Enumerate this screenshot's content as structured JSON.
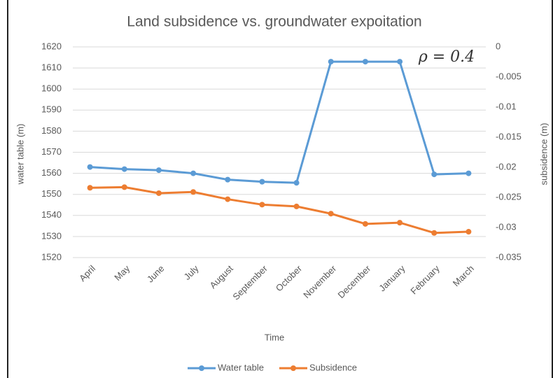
{
  "chart_data": {
    "type": "line",
    "title": "Land subsidence vs. groundwater expoitation",
    "annotation": "ρ = 0.4",
    "x_label": "Time",
    "y_label": "water table (m)",
    "y2_label": "subsidence (m)",
    "categories": [
      "April",
      "May",
      "June",
      "July",
      "August",
      "September",
      "October",
      "November",
      "December",
      "January",
      "February",
      "March"
    ],
    "series": [
      {
        "name": "Water table",
        "color": "#5b9bd5",
        "values": [
          1563,
          1562,
          1561.5,
          1560,
          1557,
          1556,
          1555.5,
          1613,
          1613,
          1613,
          1559.5,
          1560
        ]
      },
      {
        "name": "Subsidence",
        "color": "#ed7d31",
        "axis": "y2",
        "values": [
          -0.0234,
          -0.0233,
          -0.0243,
          -0.0241,
          -0.0253,
          -0.0262,
          -0.0265,
          -0.0277,
          -0.0294,
          -0.0292,
          -0.0309,
          -0.0307
        ]
      }
    ],
    "ylim": [
      1520,
      1620
    ],
    "yticks": [
      1520,
      1530,
      1540,
      1550,
      1560,
      1570,
      1580,
      1590,
      1600,
      1610,
      1620
    ],
    "y2lim": [
      -0.035,
      0
    ],
    "y2ticks": [
      -0.035,
      -0.03,
      -0.025,
      -0.02,
      -0.015,
      -0.01,
      -0.005,
      0
    ],
    "grid": true,
    "legend": "bottom"
  }
}
